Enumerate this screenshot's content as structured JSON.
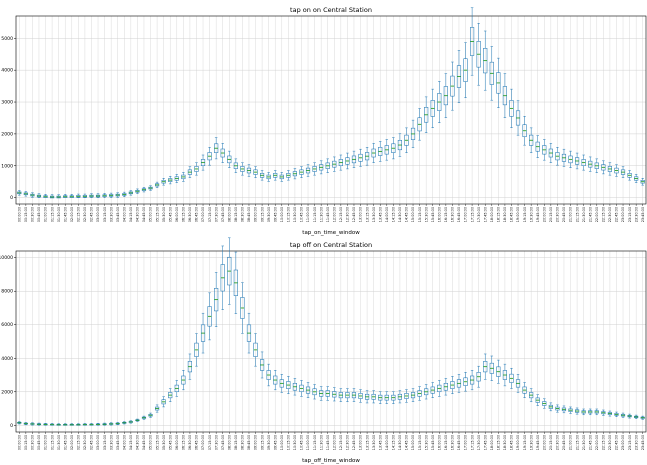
{
  "chart_data": [
    {
      "type": "box",
      "title": "tap on on Central Station",
      "xlabel": "tap_on_time_window",
      "ylabel": "",
      "ylim": [
        -200,
        5700
      ],
      "yticks": [
        0,
        1000,
        2000,
        3000,
        4000,
        5000
      ],
      "grid": true,
      "categories": [
        "00:00:00",
        "00:15:00",
        "00:30:00",
        "00:45:00",
        "01:00:00",
        "01:15:00",
        "01:30:00",
        "01:45:00",
        "02:00:00",
        "02:15:00",
        "02:30:00",
        "02:45:00",
        "03:00:00",
        "03:15:00",
        "03:30:00",
        "03:45:00",
        "04:00:00",
        "04:15:00",
        "04:30:00",
        "04:45:00",
        "05:00:00",
        "05:15:00",
        "05:30:00",
        "05:45:00",
        "06:00:00",
        "06:15:00",
        "06:30:00",
        "06:45:00",
        "07:00:00",
        "07:15:00",
        "07:30:00",
        "07:45:00",
        "08:00:00",
        "08:15:00",
        "08:30:00",
        "08:45:00",
        "09:00:00",
        "09:15:00",
        "09:30:00",
        "09:45:00",
        "10:00:00",
        "10:15:00",
        "10:30:00",
        "10:45:00",
        "11:00:00",
        "11:15:00",
        "11:30:00",
        "11:45:00",
        "12:00:00",
        "12:15:00",
        "12:30:00",
        "12:45:00",
        "13:00:00",
        "13:15:00",
        "13:30:00",
        "13:45:00",
        "14:00:00",
        "14:15:00",
        "14:30:00",
        "14:45:00",
        "15:00:00",
        "15:15:00",
        "15:30:00",
        "15:45:00",
        "16:00:00",
        "16:15:00",
        "16:30:00",
        "16:45:00",
        "17:00:00",
        "17:15:00",
        "17:30:00",
        "17:45:00",
        "18:00:00",
        "18:15:00",
        "18:30:00",
        "18:45:00",
        "19:00:00",
        "19:15:00",
        "19:30:00",
        "19:45:00",
        "20:00:00",
        "20:15:00",
        "20:30:00",
        "20:45:00",
        "21:00:00",
        "21:15:00",
        "21:30:00",
        "21:45:00",
        "22:00:00",
        "22:15:00",
        "22:30:00",
        "22:45:00",
        "23:00:00",
        "23:15:00",
        "23:30:00",
        "23:45:00"
      ],
      "medians": [
        150,
        120,
        80,
        50,
        30,
        20,
        20,
        30,
        30,
        40,
        40,
        50,
        50,
        60,
        70,
        80,
        100,
        150,
        200,
        250,
        300,
        400,
        500,
        550,
        600,
        650,
        800,
        900,
        1100,
        1300,
        1550,
        1400,
        1200,
        1000,
        900,
        850,
        800,
        700,
        650,
        700,
        650,
        700,
        750,
        800,
        850,
        900,
        950,
        1000,
        1050,
        1100,
        1150,
        1200,
        1250,
        1300,
        1400,
        1450,
        1500,
        1550,
        1650,
        1800,
        2000,
        2300,
        2600,
        2800,
        3000,
        3200,
        3500,
        3800,
        4000,
        4900,
        4500,
        4300,
        3900,
        3600,
        3200,
        2800,
        2500,
        2100,
        1800,
        1600,
        1500,
        1400,
        1300,
        1250,
        1200,
        1150,
        1100,
        1050,
        1000,
        950,
        900,
        850,
        800,
        700,
        600,
        500
      ]
    },
    {
      "type": "box",
      "title": "tap off on Central Station",
      "xlabel": "tap_off_time_window",
      "ylabel": "",
      "ylim": [
        -400,
        10400
      ],
      "yticks": [
        0,
        2000,
        4000,
        6000,
        8000,
        10000
      ],
      "grid": true,
      "categories": [
        "00:00:00",
        "00:15:00",
        "00:30:00",
        "00:45:00",
        "01:00:00",
        "01:15:00",
        "01:30:00",
        "01:45:00",
        "02:00:00",
        "02:15:00",
        "02:30:00",
        "02:45:00",
        "03:00:00",
        "03:15:00",
        "03:30:00",
        "03:45:00",
        "04:00:00",
        "04:15:00",
        "04:30:00",
        "04:45:00",
        "05:00:00",
        "05:15:00",
        "05:30:00",
        "05:45:00",
        "06:00:00",
        "06:15:00",
        "06:30:00",
        "06:45:00",
        "07:00:00",
        "07:15:00",
        "07:30:00",
        "07:45:00",
        "08:00:00",
        "08:15:00",
        "08:30:00",
        "08:45:00",
        "09:00:00",
        "09:15:00",
        "09:30:00",
        "09:45:00",
        "10:00:00",
        "10:15:00",
        "10:30:00",
        "10:45:00",
        "11:00:00",
        "11:15:00",
        "11:30:00",
        "11:45:00",
        "12:00:00",
        "12:15:00",
        "12:30:00",
        "12:45:00",
        "13:00:00",
        "13:15:00",
        "13:30:00",
        "13:45:00",
        "14:00:00",
        "14:15:00",
        "14:30:00",
        "14:45:00",
        "15:00:00",
        "15:15:00",
        "15:30:00",
        "15:45:00",
        "16:00:00",
        "16:15:00",
        "16:30:00",
        "16:45:00",
        "17:00:00",
        "17:15:00",
        "17:30:00",
        "17:45:00",
        "18:00:00",
        "18:15:00",
        "18:30:00",
        "18:45:00",
        "19:00:00",
        "19:15:00",
        "19:30:00",
        "19:45:00",
        "20:00:00",
        "20:15:00",
        "20:30:00",
        "20:45:00",
        "21:00:00",
        "21:15:00",
        "21:30:00",
        "21:45:00",
        "22:00:00",
        "22:15:00",
        "22:30:00",
        "22:45:00",
        "23:00:00",
        "23:15:00",
        "23:30:00",
        "23:45:00"
      ],
      "medians": [
        150,
        100,
        80,
        60,
        50,
        40,
        30,
        30,
        30,
        30,
        40,
        40,
        50,
        60,
        80,
        100,
        150,
        200,
        300,
        450,
        600,
        1000,
        1400,
        1800,
        2200,
        2700,
        3500,
        4500,
        5500,
        6500,
        7500,
        8800,
        9200,
        8500,
        7000,
        5500,
        4500,
        3600,
        3000,
        2700,
        2500,
        2400,
        2300,
        2200,
        2100,
        2000,
        1900,
        1900,
        1850,
        1800,
        1800,
        1800,
        1750,
        1700,
        1700,
        1650,
        1650,
        1650,
        1700,
        1750,
        1800,
        1900,
        2000,
        2100,
        2200,
        2300,
        2400,
        2500,
        2600,
        2700,
        2900,
        3500,
        3400,
        3200,
        3000,
        2800,
        2500,
        2100,
        1800,
        1500,
        1300,
        1100,
        1000,
        950,
        900,
        850,
        800,
        800,
        800,
        750,
        700,
        650,
        600,
        550,
        500,
        450,
        400
      ]
    }
  ],
  "colors": {
    "box": "#1f77b4",
    "median": "#2ca02c",
    "grid": "#d0d0d0",
    "axis": "#000000"
  }
}
